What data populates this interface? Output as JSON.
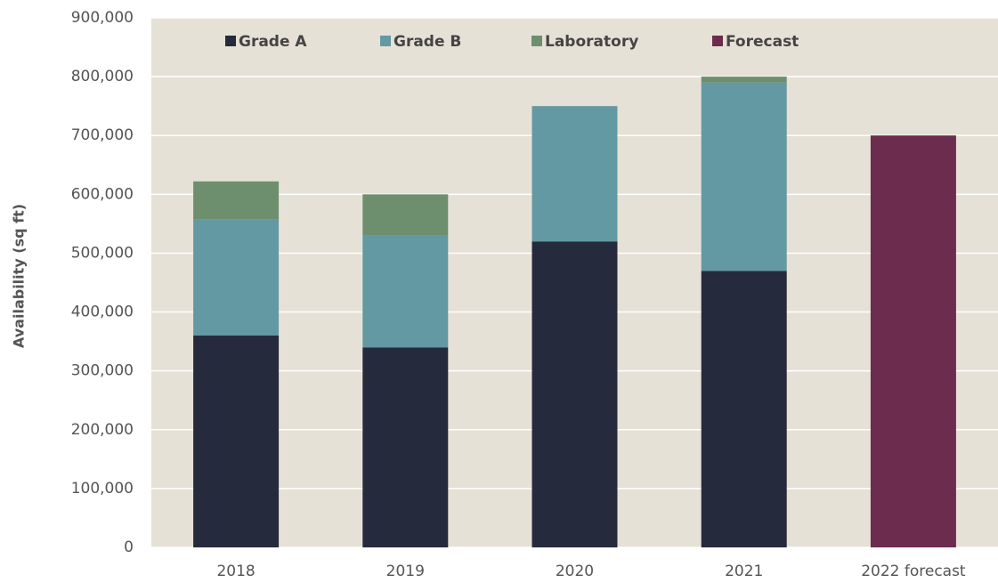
{
  "chart_data": {
    "type": "stacked_bar",
    "y_label": "Availability (sq ft)",
    "categories": [
      "2018",
      "2019",
      "2020",
      "2021",
      "2022 forecast"
    ],
    "series": [
      {
        "name": "Grade A",
        "color": "#262a3d",
        "values": [
          360000,
          340000,
          520000,
          470000,
          null
        ]
      },
      {
        "name": "Grade B",
        "color": "#6399a3",
        "values": [
          197000,
          190000,
          230000,
          320000,
          null
        ]
      },
      {
        "name": "Laboratory",
        "color": "#6d8f6e",
        "values": [
          65000,
          70000,
          null,
          10000,
          null
        ]
      },
      {
        "name": "Forecast",
        "color": "#6b2c4e",
        "values": [
          null,
          null,
          null,
          null,
          700000
        ]
      }
    ],
    "ylim": [
      0,
      900000
    ],
    "yticks": [
      0,
      {
        "value": 100000,
        "label": "100,000"
      },
      {
        "value": 200000,
        "label": "200,000"
      },
      {
        "value": 300000,
        "label": "300,000"
      },
      {
        "value": 400000,
        "label": "400,000"
      },
      {
        "value": 500000,
        "label": "500,000"
      },
      {
        "value": 600000,
        "label": "600,000"
      },
      {
        "value": 700000,
        "label": "700,000"
      },
      {
        "value": 800000,
        "label": "800,000"
      },
      {
        "value": 900000,
        "label": "900,000"
      }
    ],
    "grid": true,
    "legend": "top"
  }
}
